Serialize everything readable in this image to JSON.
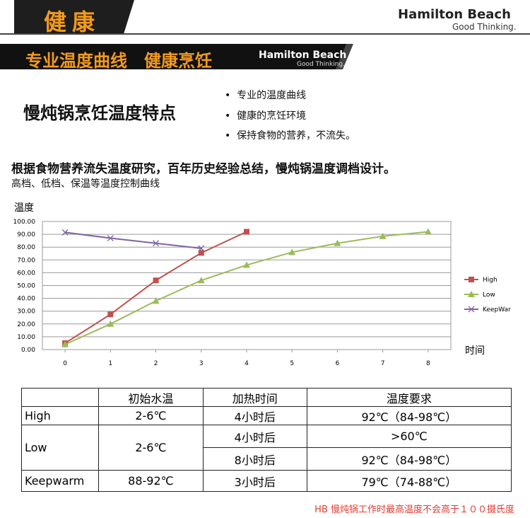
{
  "header": {
    "title": "健康",
    "brand": "Hamilton Beach",
    "tagline": "Good Thinking."
  },
  "banner": {
    "title": "专业温度曲线　健康烹饪"
  },
  "features": {
    "title": "慢炖锅烹饪温度特点",
    "items": [
      "专业的温度曲线",
      "健康的烹饪环境",
      "保持食物的营养，不流失。"
    ]
  },
  "heading": "根据食物营养流失温度研究，百年历史经验总结，慢炖锅温度调档设计。",
  "subheading": "高档、低档、保温等温度控制曲线",
  "chart_data": {
    "type": "line",
    "y_label": "温度",
    "x_label": "时间",
    "x": [
      0,
      1,
      2,
      3,
      4,
      5,
      6,
      7,
      8
    ],
    "series": [
      {
        "name": "High",
        "color": "#c0504d",
        "marker": "square",
        "values": [
          5,
          27.5,
          54,
          75.5,
          92,
          null,
          null,
          null,
          null
        ]
      },
      {
        "name": "Low",
        "color": "#9bbb59",
        "marker": "triangle",
        "values": [
          4,
          20,
          38,
          54,
          66,
          76,
          83,
          88.5,
          92
        ]
      },
      {
        "name": "KeepWar",
        "color": "#8064a2",
        "marker": "x",
        "values": [
          91.5,
          87,
          83,
          79,
          null,
          null,
          null,
          null,
          null
        ]
      }
    ],
    "xlim": [
      -0.5,
      8.5
    ],
    "xticks": [
      0,
      1,
      2,
      3,
      4,
      5,
      6,
      7,
      8
    ],
    "ylim": [
      0,
      100
    ],
    "yticks": [
      {
        "value": 0,
        "label": "0.00"
      },
      {
        "value": 10,
        "label": "10.00"
      },
      {
        "value": 20,
        "label": "20.00"
      },
      {
        "value": 30,
        "label": "30.00"
      },
      {
        "value": 40,
        "label": "40.00"
      },
      {
        "value": 50,
        "label": "50.00"
      },
      {
        "value": 60,
        "label": "60.00"
      },
      {
        "value": 70,
        "label": "70.00"
      },
      {
        "value": 80,
        "label": "80.00"
      },
      {
        "value": 90,
        "label": "90.00"
      },
      {
        "value": 100,
        "label": "100.00"
      }
    ],
    "grid": true,
    "legend": "right"
  },
  "table": {
    "columns": [
      "初始水温",
      "加热时间",
      "温度要求"
    ],
    "rows": [
      {
        "label": "High",
        "water_temp": "2-6℃",
        "stages": [
          [
            "4小时后",
            "92℃（84-98℃）"
          ]
        ]
      },
      {
        "label": "Low",
        "water_temp": "2-6℃",
        "stages": [
          [
            "4小时后",
            ">60℃"
          ],
          [
            "8小时后",
            "92℃（84-98℃）"
          ]
        ]
      },
      {
        "label": "Keepwarm",
        "water_temp": "88-92℃",
        "stages": [
          [
            "3小时后",
            "79℃（74-88℃）"
          ]
        ]
      }
    ]
  },
  "footnote": "HB 慢炖锅工作时最高温度不会高于１００摄氏度"
}
